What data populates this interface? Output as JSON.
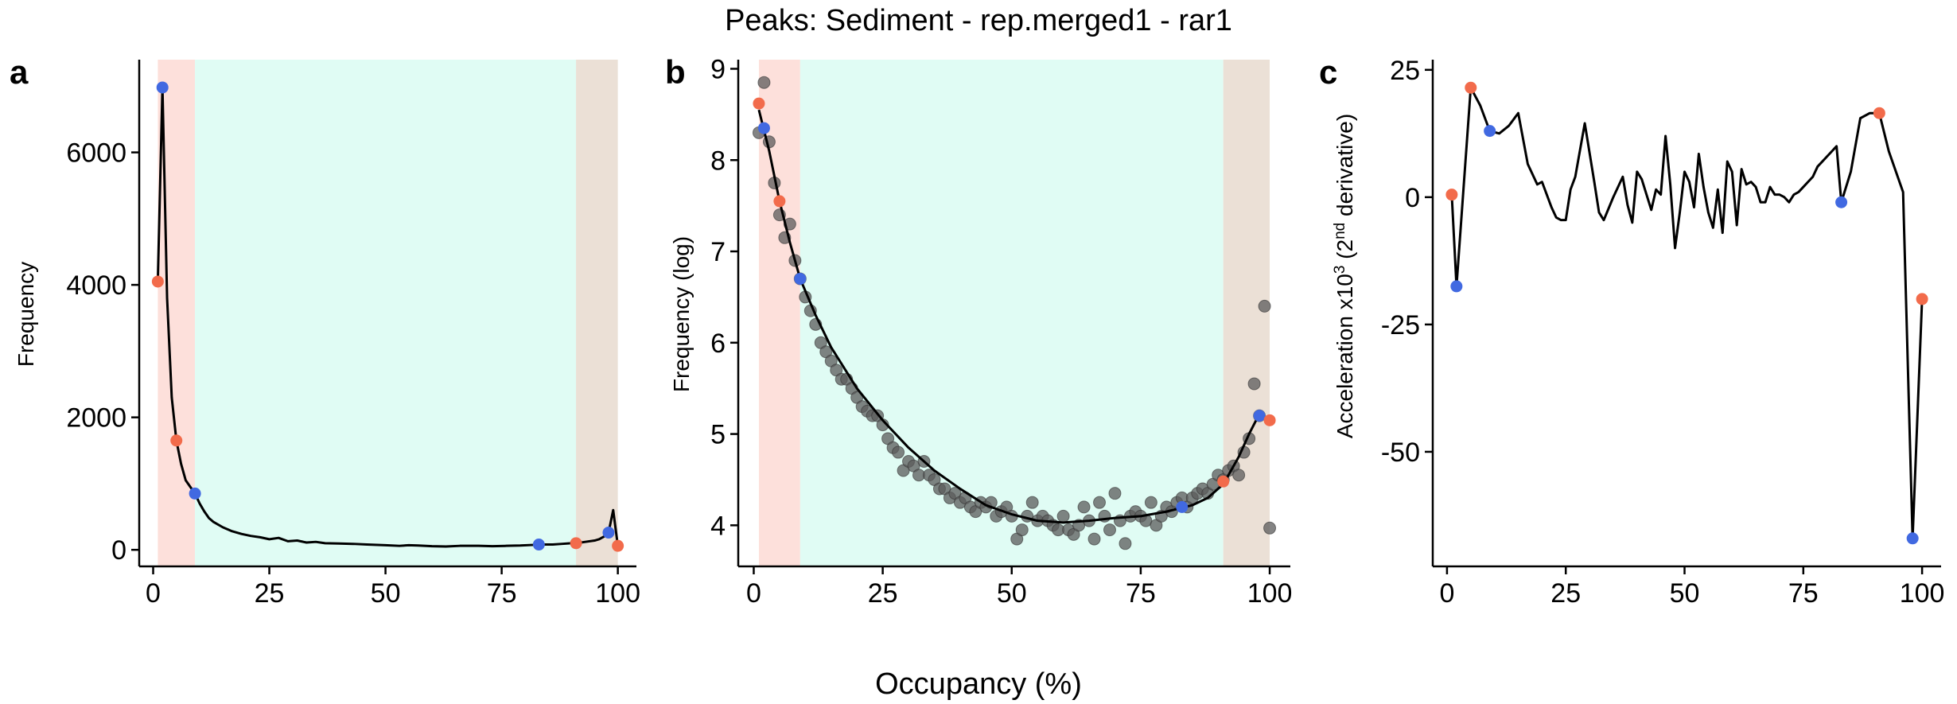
{
  "figure": {
    "title": "Peaks: Sediment - rep.merged1 - rar1",
    "xlabel": "Occupancy (%)"
  },
  "colors": {
    "low_band": "#fde0db",
    "mid_band": "#e0fcf4",
    "high_band": "#ebe0d6",
    "red_point": "#f26b4b",
    "blue_point": "#4169e1",
    "grey_point": "#5b5b5b",
    "line": "#000000"
  },
  "chart_data": [
    {
      "panel": "a",
      "type": "line",
      "xlabel": "",
      "ylabel": "Frequency",
      "xlim": [
        -3,
        104
      ],
      "ylim": [
        -250,
        7400
      ],
      "xticks": [
        0,
        25,
        50,
        75,
        100
      ],
      "yticks": [
        0,
        2000,
        4000,
        6000
      ],
      "bands": [
        {
          "name": "low",
          "from": 1,
          "to": 9
        },
        {
          "name": "mid",
          "from": 9,
          "to": 91
        },
        {
          "name": "high",
          "from": 91,
          "to": 100
        }
      ],
      "line": {
        "x": [
          1,
          2,
          3,
          4,
          5,
          6,
          7,
          8,
          9,
          10,
          11,
          12,
          13,
          15,
          17,
          19,
          21,
          23,
          25,
          27,
          29,
          31,
          33,
          35,
          37,
          40,
          43,
          46,
          50,
          53,
          55,
          57,
          60,
          63,
          66,
          70,
          73,
          76,
          79,
          82,
          84,
          86,
          88,
          90,
          91,
          93,
          95,
          96,
          97,
          98,
          99,
          100
        ],
        "y": [
          4050,
          6980,
          3800,
          2300,
          1650,
          1300,
          1050,
          950,
          850,
          700,
          580,
          480,
          420,
          340,
          280,
          240,
          210,
          190,
          160,
          180,
          130,
          140,
          110,
          120,
          100,
          95,
          90,
          80,
          70,
          60,
          70,
          65,
          55,
          50,
          60,
          60,
          55,
          60,
          65,
          75,
          80,
          80,
          90,
          100,
          100,
          120,
          140,
          160,
          200,
          260,
          600,
          60
        ]
      },
      "points": [
        {
          "x": 1,
          "y": 4050,
          "color": "red"
        },
        {
          "x": 2,
          "y": 6980,
          "color": "blue"
        },
        {
          "x": 5,
          "y": 1650,
          "color": "red"
        },
        {
          "x": 9,
          "y": 850,
          "color": "blue"
        },
        {
          "x": 83,
          "y": 80,
          "color": "blue"
        },
        {
          "x": 91,
          "y": 100,
          "color": "red"
        },
        {
          "x": 98,
          "y": 260,
          "color": "blue"
        },
        {
          "x": 100,
          "y": 60,
          "color": "red"
        }
      ]
    },
    {
      "panel": "b",
      "type": "scatter",
      "xlabel": "",
      "ylabel": "Frequency (log)",
      "xlim": [
        -3,
        104
      ],
      "ylim": [
        3.55,
        9.1
      ],
      "xticks": [
        0,
        25,
        50,
        75,
        100
      ],
      "yticks": [
        4,
        5,
        6,
        7,
        8,
        9
      ],
      "bands": [
        {
          "name": "low",
          "from": 1,
          "to": 9
        },
        {
          "name": "mid",
          "from": 9,
          "to": 91
        },
        {
          "name": "high",
          "from": 91,
          "to": 100
        }
      ],
      "scatter": {
        "x": [
          1,
          2,
          3,
          4,
          5,
          6,
          7,
          8,
          9,
          10,
          11,
          12,
          13,
          14,
          15,
          16,
          17,
          18,
          19,
          20,
          21,
          22,
          23,
          24,
          25,
          26,
          27,
          28,
          29,
          30,
          31,
          32,
          33,
          34,
          35,
          36,
          37,
          38,
          39,
          40,
          41,
          42,
          43,
          44,
          45,
          46,
          47,
          48,
          49,
          50,
          51,
          52,
          53,
          54,
          55,
          56,
          57,
          58,
          59,
          60,
          61,
          62,
          63,
          64,
          65,
          66,
          67,
          68,
          69,
          70,
          71,
          72,
          73,
          74,
          75,
          76,
          77,
          78,
          79,
          80,
          81,
          82,
          83,
          84,
          85,
          86,
          87,
          88,
          89,
          90,
          91,
          92,
          93,
          94,
          95,
          96,
          97,
          98,
          99,
          100
        ],
        "y": [
          8.3,
          8.85,
          8.2,
          7.75,
          7.4,
          7.15,
          7.3,
          6.9,
          6.7,
          6.5,
          6.35,
          6.2,
          6.0,
          5.9,
          5.8,
          5.7,
          5.6,
          5.6,
          5.5,
          5.4,
          5.3,
          5.25,
          5.2,
          5.2,
          5.1,
          4.95,
          4.85,
          4.8,
          4.6,
          4.7,
          4.65,
          4.55,
          4.7,
          4.55,
          4.5,
          4.4,
          4.4,
          4.3,
          4.35,
          4.25,
          4.3,
          4.2,
          4.15,
          4.25,
          4.2,
          4.25,
          4.1,
          4.15,
          4.2,
          4.1,
          3.85,
          3.95,
          4.1,
          4.25,
          4.05,
          4.1,
          4.05,
          4.0,
          3.95,
          4.1,
          3.95,
          3.9,
          4.0,
          4.2,
          4.05,
          3.85,
          4.25,
          4.1,
          3.95,
          4.35,
          4.05,
          3.8,
          4.1,
          4.15,
          4.1,
          4.05,
          4.25,
          4.0,
          4.1,
          4.2,
          4.15,
          4.25,
          4.3,
          4.2,
          4.3,
          4.35,
          4.4,
          4.35,
          4.45,
          4.55,
          4.5,
          4.6,
          4.65,
          4.55,
          4.8,
          4.95,
          5.55,
          5.2,
          6.4,
          3.97
        ]
      },
      "fit_line": {
        "x": [
          1,
          3,
          5,
          7,
          9,
          12,
          15,
          20,
          25,
          30,
          35,
          40,
          45,
          50,
          55,
          60,
          65,
          70,
          75,
          80,
          85,
          88,
          91,
          94,
          96,
          98
        ],
        "y": [
          8.55,
          8.1,
          7.55,
          7.1,
          6.7,
          6.3,
          5.95,
          5.5,
          5.15,
          4.85,
          4.6,
          4.4,
          4.22,
          4.12,
          4.05,
          4.03,
          4.05,
          4.08,
          4.1,
          4.15,
          4.22,
          4.3,
          4.45,
          4.75,
          5.0,
          5.22
        ]
      },
      "points": [
        {
          "x": 1,
          "y": 8.62,
          "color": "red"
        },
        {
          "x": 2,
          "y": 8.35,
          "color": "blue"
        },
        {
          "x": 5,
          "y": 7.55,
          "color": "red"
        },
        {
          "x": 9,
          "y": 6.7,
          "color": "blue"
        },
        {
          "x": 83,
          "y": 4.2,
          "color": "blue"
        },
        {
          "x": 91,
          "y": 4.48,
          "color": "red"
        },
        {
          "x": 98,
          "y": 5.2,
          "color": "blue"
        },
        {
          "x": 100,
          "y": 5.15,
          "color": "red"
        }
      ]
    },
    {
      "panel": "c",
      "type": "line",
      "xlabel": "",
      "ylabel_main": "Acceleration x10",
      "ylabel_exp": "3",
      "ylabel_paren_open": " (2",
      "ylabel_sup": "nd",
      "ylabel_paren_close": " derivative)",
      "xlim": [
        -3,
        104
      ],
      "ylim": [
        -72.5,
        27
      ],
      "xticks": [
        0,
        25,
        50,
        75,
        100
      ],
      "yticks": [
        25,
        0,
        -25,
        -50
      ],
      "line": {
        "x": [
          1,
          2,
          5,
          7,
          9,
          11,
          13,
          15,
          17,
          19,
          20,
          22,
          23,
          24,
          25,
          26,
          27,
          29,
          31,
          32,
          33,
          35,
          37,
          38,
          39,
          40,
          41,
          42,
          43,
          44,
          45,
          46,
          47,
          48,
          49,
          50,
          51,
          52,
          53,
          54,
          55,
          56,
          57,
          58,
          59,
          60,
          61,
          62,
          63,
          64,
          65,
          66,
          67,
          68,
          69,
          70,
          71,
          72,
          73,
          74,
          75,
          76,
          77,
          78,
          79,
          80,
          81,
          82,
          83,
          85,
          87,
          89,
          91,
          93,
          96,
          98,
          100
        ],
        "y": [
          0.5,
          -17.5,
          21.5,
          18,
          13,
          12.5,
          14,
          16.5,
          6.5,
          2.5,
          3,
          -2,
          -4,
          -4.5,
          -4.5,
          1.5,
          4,
          14.5,
          3,
          -3,
          -4.5,
          0,
          4,
          -1.5,
          -5,
          5,
          3.5,
          0.5,
          -2.5,
          1.5,
          0.5,
          12,
          2.5,
          -10,
          -3,
          5,
          3,
          -2,
          8.5,
          2,
          -3,
          -6,
          1.5,
          -7,
          7,
          5,
          -5.5,
          5.5,
          2.5,
          3,
          2,
          -1,
          -1,
          2,
          0.5,
          0.5,
          0,
          -1,
          0.5,
          1,
          2,
          3,
          4,
          6,
          7,
          8,
          9,
          10,
          -1,
          5,
          15.5,
          16.5,
          16.5,
          9,
          1,
          -67,
          -20
        ]
      },
      "points": [
        {
          "x": 1,
          "y": 0.5,
          "color": "red"
        },
        {
          "x": 2,
          "y": -17.5,
          "color": "blue"
        },
        {
          "x": 5,
          "y": 21.5,
          "color": "red"
        },
        {
          "x": 9,
          "y": 13,
          "color": "blue"
        },
        {
          "x": 83,
          "y": -1,
          "color": "blue"
        },
        {
          "x": 91,
          "y": 16.5,
          "color": "red"
        },
        {
          "x": 98,
          "y": -67,
          "color": "blue"
        },
        {
          "x": 100,
          "y": -20,
          "color": "red"
        }
      ]
    }
  ]
}
